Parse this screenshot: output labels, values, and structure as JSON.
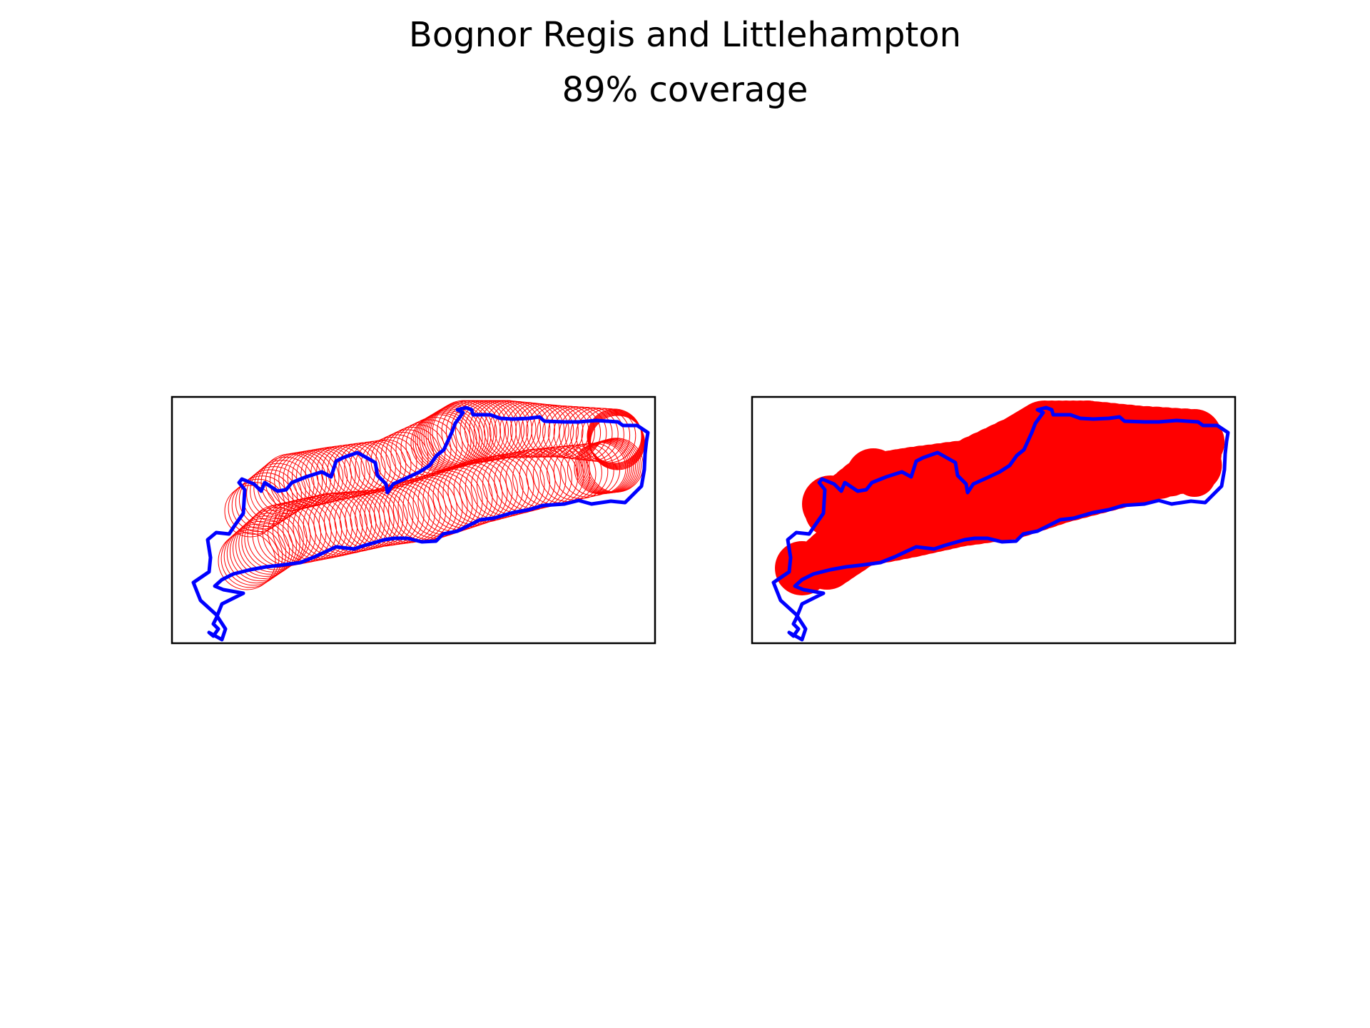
{
  "figure": {
    "title": "Bognor Regis and Littlehampton",
    "subtitle": "89% coverage"
  },
  "colors": {
    "boundary": "#0000ff",
    "coverage": "#ff0000",
    "frame": "#000000",
    "background": "#ffffff"
  },
  "panels": [
    {
      "id": "left",
      "coverage_style": "overlapping-circle-outlines"
    },
    {
      "id": "right",
      "coverage_style": "filled-union"
    }
  ],
  "coverage_percent": 89
}
